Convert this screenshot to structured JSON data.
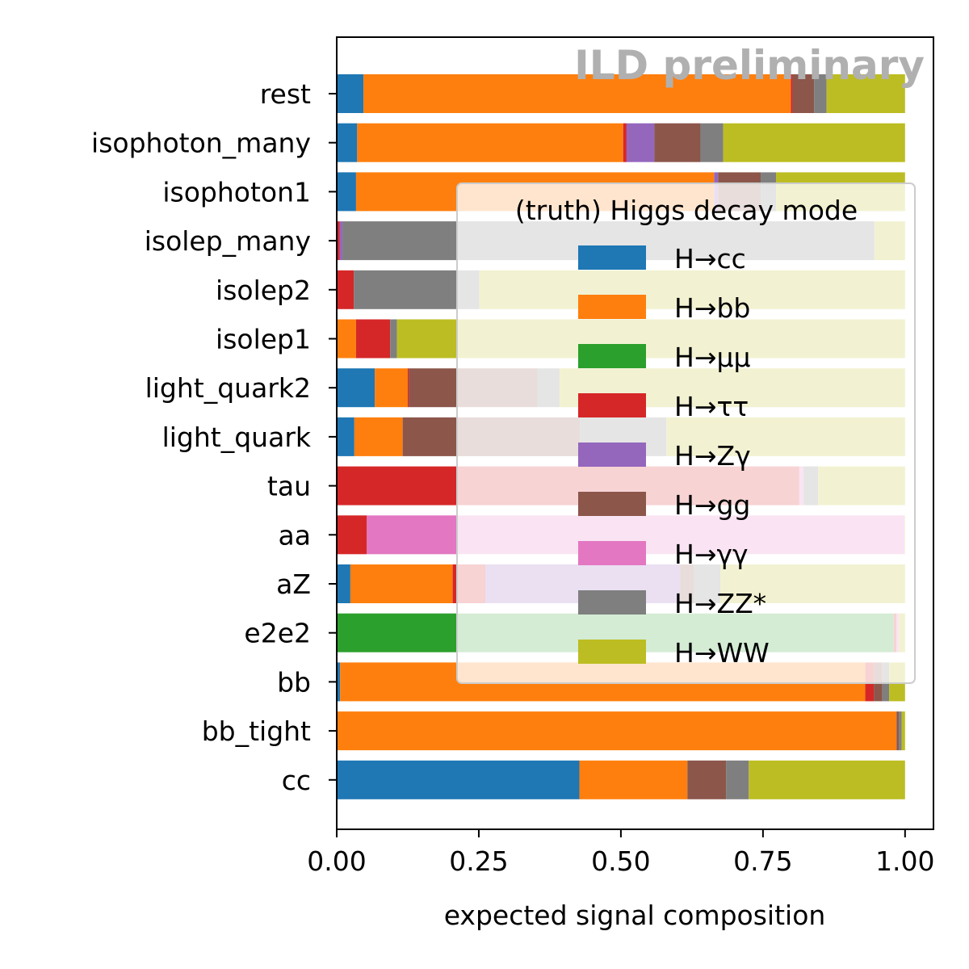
{
  "chart_data": {
    "type": "bar",
    "orientation": "horizontal",
    "stacked": true,
    "watermark": "ILD preliminary",
    "xlabel": "expected signal composition",
    "ylabel": "",
    "xlim": [
      0,
      1.05
    ],
    "x_ticks": [
      "0.00",
      "0.25",
      "0.50",
      "0.75",
      "1.00"
    ],
    "grid": false,
    "legend_position": "center-right",
    "legend_title": "(truth) Higgs decay mode",
    "categories": [
      "rest",
      "isophoton_many",
      "isophoton1",
      "isolep_many",
      "isolep2",
      "isolep1",
      "light_quark2",
      "light_quark",
      "tau",
      "aa",
      "aZ",
      "e2e2",
      "bb",
      "bb_tight",
      "cc"
    ],
    "series": [
      {
        "name": "H→cc",
        "color": "#1f77b4",
        "values": [
          0.047,
          0.036,
          0.034,
          0.0,
          0.0,
          0.0,
          0.067,
          0.031,
          0.0,
          0.0,
          0.024,
          0.0,
          0.006,
          0.0,
          0.427
        ]
      },
      {
        "name": "H→bb",
        "color": "#ff7f0e",
        "values": [
          0.752,
          0.468,
          0.63,
          0.0,
          0.0,
          0.034,
          0.058,
          0.085,
          0.0,
          0.0,
          0.18,
          0.0,
          0.924,
          0.985,
          0.19
        ]
      },
      {
        "name": "H→μμ",
        "color": "#2ca02c",
        "values": [
          0.0,
          0.0,
          0.0,
          0.0,
          0.0,
          0.0,
          0.0,
          0.0,
          0.0,
          0.0,
          0.0,
          0.98,
          0.0,
          0.0,
          0.0
        ]
      },
      {
        "name": "H→ττ",
        "color": "#d62728",
        "values": [
          0.003,
          0.006,
          0.0,
          0.005,
          0.03,
          0.06,
          0.002,
          0.0,
          0.814,
          0.053,
          0.058,
          0.005,
          0.015,
          0.0,
          0.0
        ]
      },
      {
        "name": "H→Zγ",
        "color": "#9467bd",
        "values": [
          0.0,
          0.049,
          0.007,
          0.005,
          0.0,
          0.0,
          0.0,
          0.0,
          0.0,
          0.0,
          0.342,
          0.0,
          0.0,
          0.0,
          0.0
        ]
      },
      {
        "name": "H→gg",
        "color": "#8c564b",
        "values": [
          0.038,
          0.081,
          0.075,
          0.0,
          0.0,
          0.0,
          0.226,
          0.312,
          0.0,
          0.0,
          0.024,
          0.0,
          0.015,
          0.004,
          0.068
        ]
      },
      {
        "name": "H→γγ",
        "color": "#e377c2",
        "values": [
          0.0,
          0.0,
          0.0,
          0.0,
          0.0,
          0.0,
          0.0,
          0.0,
          0.007,
          0.946,
          0.0,
          0.004,
          0.0,
          0.0,
          0.0
        ]
      },
      {
        "name": "H→ZZ*",
        "color": "#7f7f7f",
        "values": [
          0.022,
          0.04,
          0.027,
          0.936,
          0.221,
          0.012,
          0.039,
          0.152,
          0.026,
          0.0,
          0.047,
          0.0,
          0.012,
          0.005,
          0.04
        ]
      },
      {
        "name": "H→WW",
        "color": "#bcbd22",
        "values": [
          0.138,
          0.32,
          0.227,
          0.054,
          0.749,
          0.894,
          0.608,
          0.42,
          0.153,
          0.001,
          0.325,
          0.011,
          0.028,
          0.006,
          0.275
        ]
      }
    ]
  }
}
